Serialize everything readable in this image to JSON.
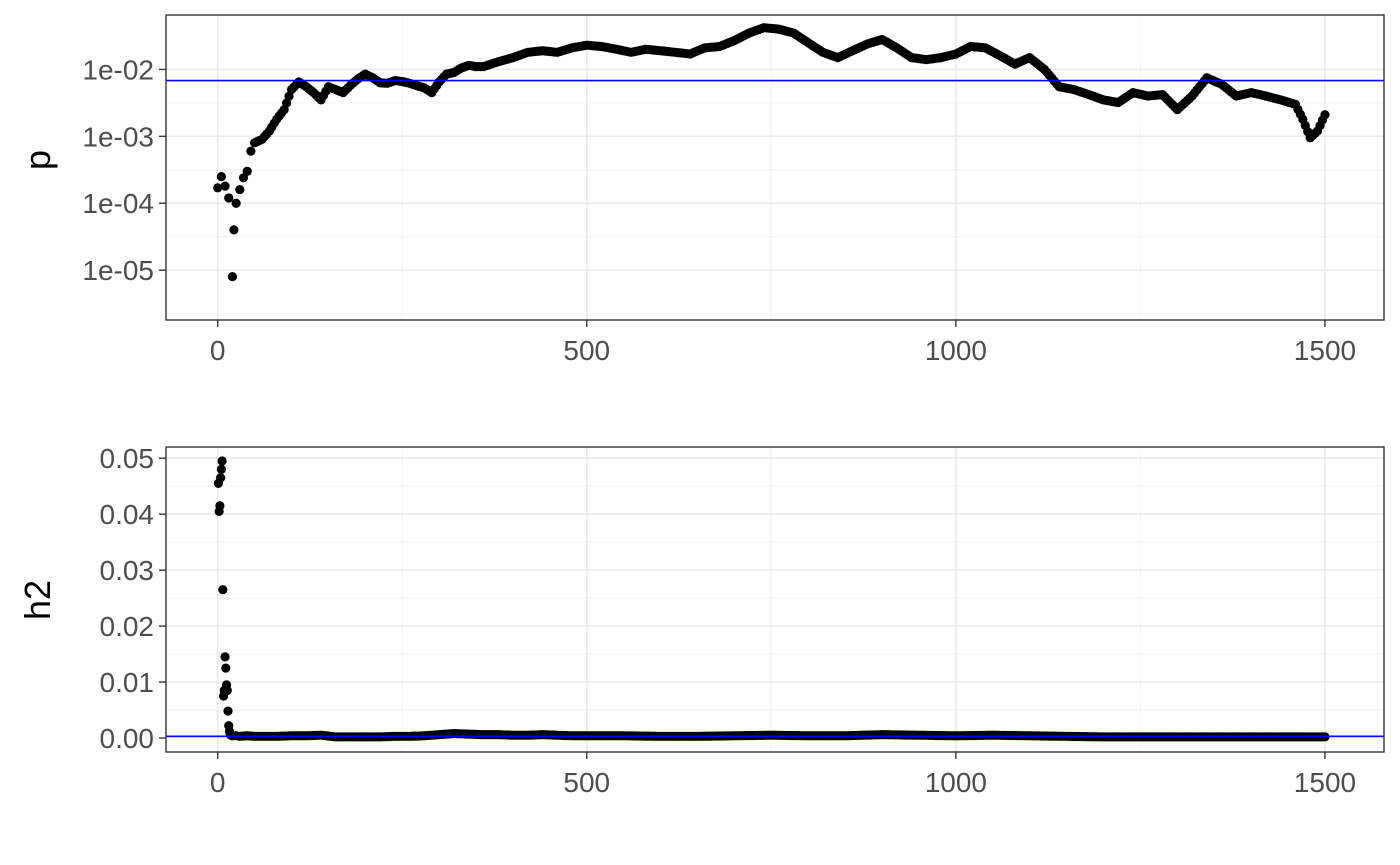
{
  "chart_data": [
    {
      "type": "scatter",
      "ylabel": "p",
      "xlabel": "",
      "y_scale": "log10",
      "xlim": [
        -70,
        1580
      ],
      "ylim": [
        1.8e-06,
        0.065
      ],
      "x_ticks": [
        0,
        500,
        1000,
        1500
      ],
      "x_tick_labels": [
        "0",
        "500",
        "1000",
        "1500"
      ],
      "y_ticks": [
        1e-05,
        0.0001,
        0.001,
        0.01
      ],
      "y_tick_labels": [
        "1e-05",
        "1e-04",
        "1e-03",
        "1e-02"
      ],
      "grid": true,
      "reference_line": 0.0068,
      "colors": {
        "points": "#000000",
        "reference_line": "#0000ff"
      },
      "series": [
        {
          "x": [
            0,
            5,
            10,
            15,
            20,
            22,
            25,
            30,
            35,
            40,
            45,
            50,
            60,
            70,
            80,
            90,
            100,
            110,
            120,
            130,
            140,
            150,
            160,
            170,
            180,
            190,
            200,
            210,
            220,
            230,
            240,
            250,
            260,
            270,
            280,
            290,
            300,
            310,
            320,
            330,
            340,
            350,
            360,
            380,
            400,
            420,
            440,
            460,
            480,
            500,
            520,
            540,
            560,
            580,
            600,
            620,
            640,
            660,
            680,
            700,
            720,
            740,
            760,
            780,
            800,
            820,
            840,
            860,
            880,
            900,
            920,
            940,
            960,
            980,
            1000,
            1020,
            1040,
            1060,
            1080,
            1100,
            1120,
            1140,
            1160,
            1180,
            1200,
            1220,
            1240,
            1260,
            1280,
            1300,
            1320,
            1340,
            1360,
            1380,
            1400,
            1420,
            1440,
            1460,
            1470,
            1480,
            1490,
            1500
          ],
          "y": [
            0.00017,
            0.00025,
            0.00018,
            0.00012,
            8e-06,
            4e-05,
            0.0001,
            0.00016,
            0.00024,
            0.0003,
            0.0006,
            0.0008,
            0.0009,
            0.0012,
            0.0018,
            0.0025,
            0.005,
            0.0065,
            0.0055,
            0.0045,
            0.0035,
            0.0055,
            0.005,
            0.0045,
            0.0058,
            0.0072,
            0.0085,
            0.0075,
            0.0063,
            0.0062,
            0.0068,
            0.0066,
            0.0062,
            0.0057,
            0.0053,
            0.0045,
            0.0065,
            0.0085,
            0.009,
            0.0105,
            0.0115,
            0.011,
            0.011,
            0.013,
            0.015,
            0.018,
            0.019,
            0.018,
            0.021,
            0.023,
            0.022,
            0.02,
            0.018,
            0.02,
            0.019,
            0.018,
            0.017,
            0.021,
            0.022,
            0.027,
            0.035,
            0.042,
            0.04,
            0.035,
            0.025,
            0.018,
            0.015,
            0.019,
            0.024,
            0.028,
            0.021,
            0.015,
            0.014,
            0.015,
            0.017,
            0.022,
            0.021,
            0.016,
            0.012,
            0.015,
            0.01,
            0.0055,
            0.005,
            0.0042,
            0.0035,
            0.0032,
            0.0045,
            0.004,
            0.0042,
            0.0025,
            0.004,
            0.0075,
            0.006,
            0.004,
            0.0045,
            0.004,
            0.0035,
            0.003,
            0.0018,
            0.00095,
            0.0012,
            0.0021
          ]
        }
      ]
    },
    {
      "type": "scatter",
      "ylabel": "h2",
      "xlabel": "",
      "xlim": [
        -70,
        1580
      ],
      "ylim": [
        -0.0025,
        0.052
      ],
      "x_ticks": [
        0,
        500,
        1000,
        1500
      ],
      "x_tick_labels": [
        "0",
        "500",
        "1000",
        "1500"
      ],
      "y_ticks": [
        0,
        0.01,
        0.02,
        0.03,
        0.04,
        0.05
      ],
      "y_tick_labels": [
        "0.00",
        "0.01",
        "0.02",
        "0.03",
        "0.04",
        "0.05"
      ],
      "grid": true,
      "reference_line": 0.0003,
      "colors": {
        "points": "#000000",
        "reference_line": "#0000ff"
      },
      "series": [
        {
          "x": [
            1,
            2,
            3,
            4,
            5,
            6,
            7,
            8,
            9,
            10,
            11,
            12,
            13,
            14,
            15,
            16,
            17,
            18,
            20,
            25,
            30,
            40,
            50,
            60,
            80,
            100,
            120,
            140,
            160,
            180,
            200,
            220,
            240,
            260,
            280,
            300,
            320,
            340,
            360,
            380,
            400,
            420,
            440,
            460,
            480,
            500,
            550,
            600,
            650,
            700,
            750,
            800,
            850,
            900,
            950,
            1000,
            1050,
            1100,
            1150,
            1200,
            1250,
            1300,
            1350,
            1400,
            1450,
            1480,
            1500
          ],
          "y": [
            0.0455,
            0.0405,
            0.0415,
            0.0465,
            0.048,
            0.0495,
            0.0265,
            0.0075,
            0.0085,
            0.0145,
            0.0125,
            0.0095,
            0.0085,
            0.0048,
            0.0022,
            0.0012,
            0.0006,
            0.0005,
            0.0004,
            0.0004,
            0.0003,
            0.0004,
            0.0003,
            0.0003,
            0.0003,
            0.0004,
            0.0004,
            0.0005,
            0.0002,
            0.0002,
            0.0002,
            0.0002,
            0.0003,
            0.0003,
            0.0004,
            0.0006,
            0.0008,
            0.0007,
            0.0006,
            0.0006,
            0.0005,
            0.0005,
            0.0006,
            0.0005,
            0.0004,
            0.0004,
            0.0004,
            0.0003,
            0.0003,
            0.0004,
            0.0005,
            0.0004,
            0.0004,
            0.0006,
            0.0005,
            0.0004,
            0.0005,
            0.0004,
            0.0003,
            0.0002,
            0.0002,
            0.0002,
            0.0002,
            0.0002,
            0.0002,
            0.0002,
            0.0002
          ]
        }
      ]
    }
  ]
}
